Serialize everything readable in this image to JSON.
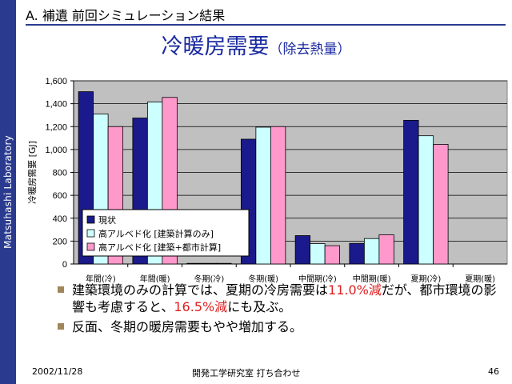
{
  "sidebar": {
    "label": "Matsuhashi Laboratory"
  },
  "header": {
    "section": "A. 補遺 前回シミュレーション結果"
  },
  "title": {
    "main": "冷暖房需要",
    "sub": "（除去熱量）"
  },
  "chart_data": {
    "type": "bar",
    "ylabel": "冷暖房需要 [GJ]",
    "ylim": [
      0,
      1600
    ],
    "yticks": [
      0,
      200,
      400,
      600,
      800,
      1000,
      1200,
      1400,
      1600
    ],
    "ytick_labels": [
      "0",
      "200",
      "400",
      "600",
      "800",
      "1,000",
      "1,200",
      "1,400",
      "1,600"
    ],
    "grid": true,
    "legend_position": "bottom-left",
    "categories": [
      "年間(冷)",
      "年間(暖)",
      "冬期(冷)",
      "冬期(暖)",
      "中間期(冷)",
      "中間期(暖)",
      "夏期(冷)",
      "夏期(暖)"
    ],
    "series": [
      {
        "name": "現状",
        "color": "#1a1a8c",
        "values": [
          1505,
          1275,
          5,
          1090,
          248,
          180,
          1255,
          0
        ]
      },
      {
        "name": "高アルベド化 [建築計算のみ]",
        "color": "#ccffff",
        "values": [
          1310,
          1415,
          3,
          1195,
          178,
          222,
          1120,
          0
        ]
      },
      {
        "name": "高アルベド化 [建築+都市計算]",
        "color": "#ff99cc",
        "values": [
          1200,
          1455,
          2,
          1200,
          160,
          255,
          1045,
          0
        ]
      }
    ],
    "colors": {
      "plot_background": "#c0c0c0",
      "gridline": "#000000"
    }
  },
  "bullets": [
    {
      "parts": [
        {
          "text": "建築環境のみの計算では、夏期の冷房需要は",
          "highlight": false
        },
        {
          "text": "11.0%減",
          "highlight": true
        },
        {
          "text": "だが、都市環境の影響も考慮すると、",
          "highlight": false
        },
        {
          "text": "16.5%減",
          "highlight": true
        },
        {
          "text": "にも及ぶ。",
          "highlight": false
        }
      ]
    },
    {
      "parts": [
        {
          "text": "反面、冬期の暖房需要もやや増加する。",
          "highlight": false
        }
      ]
    }
  ],
  "footer": {
    "date": "2002/11/28",
    "center": "開発工学研究室 打ち合わせ",
    "page": "46"
  }
}
